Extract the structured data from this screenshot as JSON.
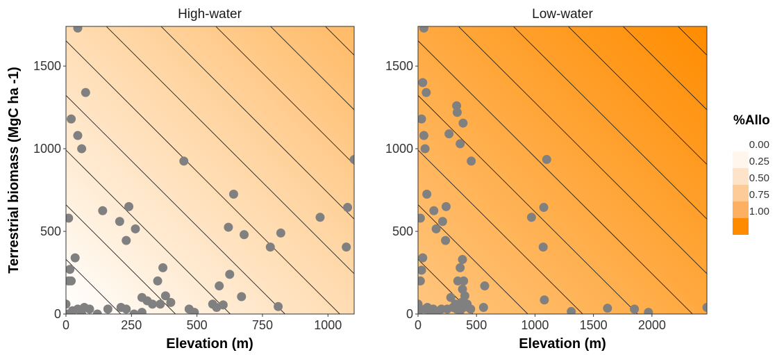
{
  "chart_data": [
    {
      "type": "scatter",
      "title": "High-water",
      "xlabel": "Elevation (m)",
      "ylabel": "Terrestrial biomass (MgC ha -1)",
      "xlim": [
        0,
        1100
      ],
      "ylim": [
        0,
        1740
      ],
      "xticks": [
        0,
        250,
        500,
        750,
        1000
      ],
      "xtick_labels": [
        "0",
        "250",
        "500",
        "750",
        "1000"
      ],
      "yticks": [
        0,
        500,
        1000,
        1500
      ],
      "ytick_labels": [
        "0",
        "500",
        "1000",
        "1500"
      ],
      "fill_range": [
        0.0,
        0.6
      ],
      "contour_count": 10,
      "point_color": "#808080",
      "points": [
        [
          0,
          60
        ],
        [
          5,
          0
        ],
        [
          10,
          200
        ],
        [
          15,
          270
        ],
        [
          20,
          200
        ],
        [
          25,
          20
        ],
        [
          35,
          340
        ],
        [
          45,
          30
        ],
        [
          60,
          0
        ],
        [
          70,
          40
        ],
        [
          90,
          30
        ],
        [
          120,
          0
        ],
        [
          160,
          30
        ],
        [
          210,
          40
        ],
        [
          230,
          30
        ],
        [
          260,
          0
        ],
        [
          290,
          100
        ],
        [
          310,
          80
        ],
        [
          330,
          60
        ],
        [
          350,
          200
        ],
        [
          370,
          280
        ],
        [
          380,
          110
        ],
        [
          400,
          70
        ],
        [
          290,
          10
        ],
        [
          360,
          60
        ],
        [
          10,
          580
        ],
        [
          20,
          1180
        ],
        [
          45,
          1080
        ],
        [
          60,
          1000
        ],
        [
          75,
          1340
        ],
        [
          45,
          1730
        ],
        [
          140,
          625
        ],
        [
          205,
          560
        ],
        [
          230,
          445
        ],
        [
          240,
          650
        ],
        [
          265,
          515
        ],
        [
          450,
          925
        ],
        [
          470,
          30
        ],
        [
          490,
          10
        ],
        [
          560,
          60
        ],
        [
          575,
          40
        ],
        [
          585,
          170
        ],
        [
          600,
          55
        ],
        [
          625,
          240
        ],
        [
          620,
          525
        ],
        [
          640,
          725
        ],
        [
          670,
          105
        ],
        [
          680,
          480
        ],
        [
          780,
          405
        ],
        [
          810,
          45
        ],
        [
          820,
          490
        ],
        [
          970,
          585
        ],
        [
          1070,
          405
        ],
        [
          1075,
          645
        ],
        [
          1100,
          935
        ]
      ]
    },
    {
      "type": "scatter",
      "title": "Low-water",
      "xlabel": "Elevation (m)",
      "ylabel": "",
      "xlim": [
        0,
        2470
      ],
      "ylim": [
        0,
        1740
      ],
      "xticks": [
        0,
        500,
        1000,
        1500,
        2000
      ],
      "xtick_labels": [
        "0",
        "500",
        "1000",
        "1500",
        "2000"
      ],
      "yticks": [
        0,
        500,
        1000,
        1500
      ],
      "ytick_labels": [
        "0",
        "500",
        "1000",
        "1500"
      ],
      "fill_range": [
        0.5,
        1.0
      ],
      "contour_count": 10,
      "point_color": "#808080",
      "points": [
        [
          0,
          60
        ],
        [
          10,
          20
        ],
        [
          20,
          200
        ],
        [
          30,
          265
        ],
        [
          40,
          340
        ],
        [
          60,
          30
        ],
        [
          80,
          40
        ],
        [
          100,
          20
        ],
        [
          130,
          30
        ],
        [
          160,
          10
        ],
        [
          200,
          30
        ],
        [
          250,
          30
        ],
        [
          280,
          100
        ],
        [
          300,
          40
        ],
        [
          320,
          60
        ],
        [
          330,
          30
        ],
        [
          340,
          200
        ],
        [
          360,
          280
        ],
        [
          380,
          330
        ],
        [
          390,
          200
        ],
        [
          400,
          110
        ],
        [
          420,
          60
        ],
        [
          450,
          30
        ],
        [
          360,
          20
        ],
        [
          370,
          70
        ],
        [
          380,
          150
        ],
        [
          390,
          40
        ],
        [
          20,
          580
        ],
        [
          30,
          1180
        ],
        [
          40,
          1400
        ],
        [
          50,
          1080
        ],
        [
          60,
          1000
        ],
        [
          50,
          1730
        ],
        [
          70,
          1340
        ],
        [
          75,
          725
        ],
        [
          135,
          625
        ],
        [
          155,
          515
        ],
        [
          210,
          560
        ],
        [
          235,
          445
        ],
        [
          240,
          650
        ],
        [
          265,
          1090
        ],
        [
          330,
          1260
        ],
        [
          335,
          1220
        ],
        [
          360,
          1030
        ],
        [
          385,
          1155
        ],
        [
          455,
          925
        ],
        [
          560,
          40
        ],
        [
          570,
          170
        ],
        [
          970,
          585
        ],
        [
          1070,
          405
        ],
        [
          1075,
          645
        ],
        [
          1080,
          85
        ],
        [
          1100,
          935
        ],
        [
          1310,
          15
        ],
        [
          1620,
          35
        ],
        [
          1850,
          30
        ],
        [
          1970,
          10
        ],
        [
          2470,
          40
        ]
      ]
    }
  ],
  "legend": {
    "title": "%Allo",
    "placement": "right",
    "labels": [
      "0.00",
      "0.25",
      "0.50",
      "0.75",
      "1.00"
    ],
    "colors": [
      "#FFF6EE",
      "#FCE3C9",
      "#FDCB97",
      "#FDB062",
      "#FF8C00"
    ]
  },
  "colors": {
    "low": "#FFFFFF",
    "high": "#FF8C00",
    "points": "#808080",
    "contour": "#222222"
  }
}
